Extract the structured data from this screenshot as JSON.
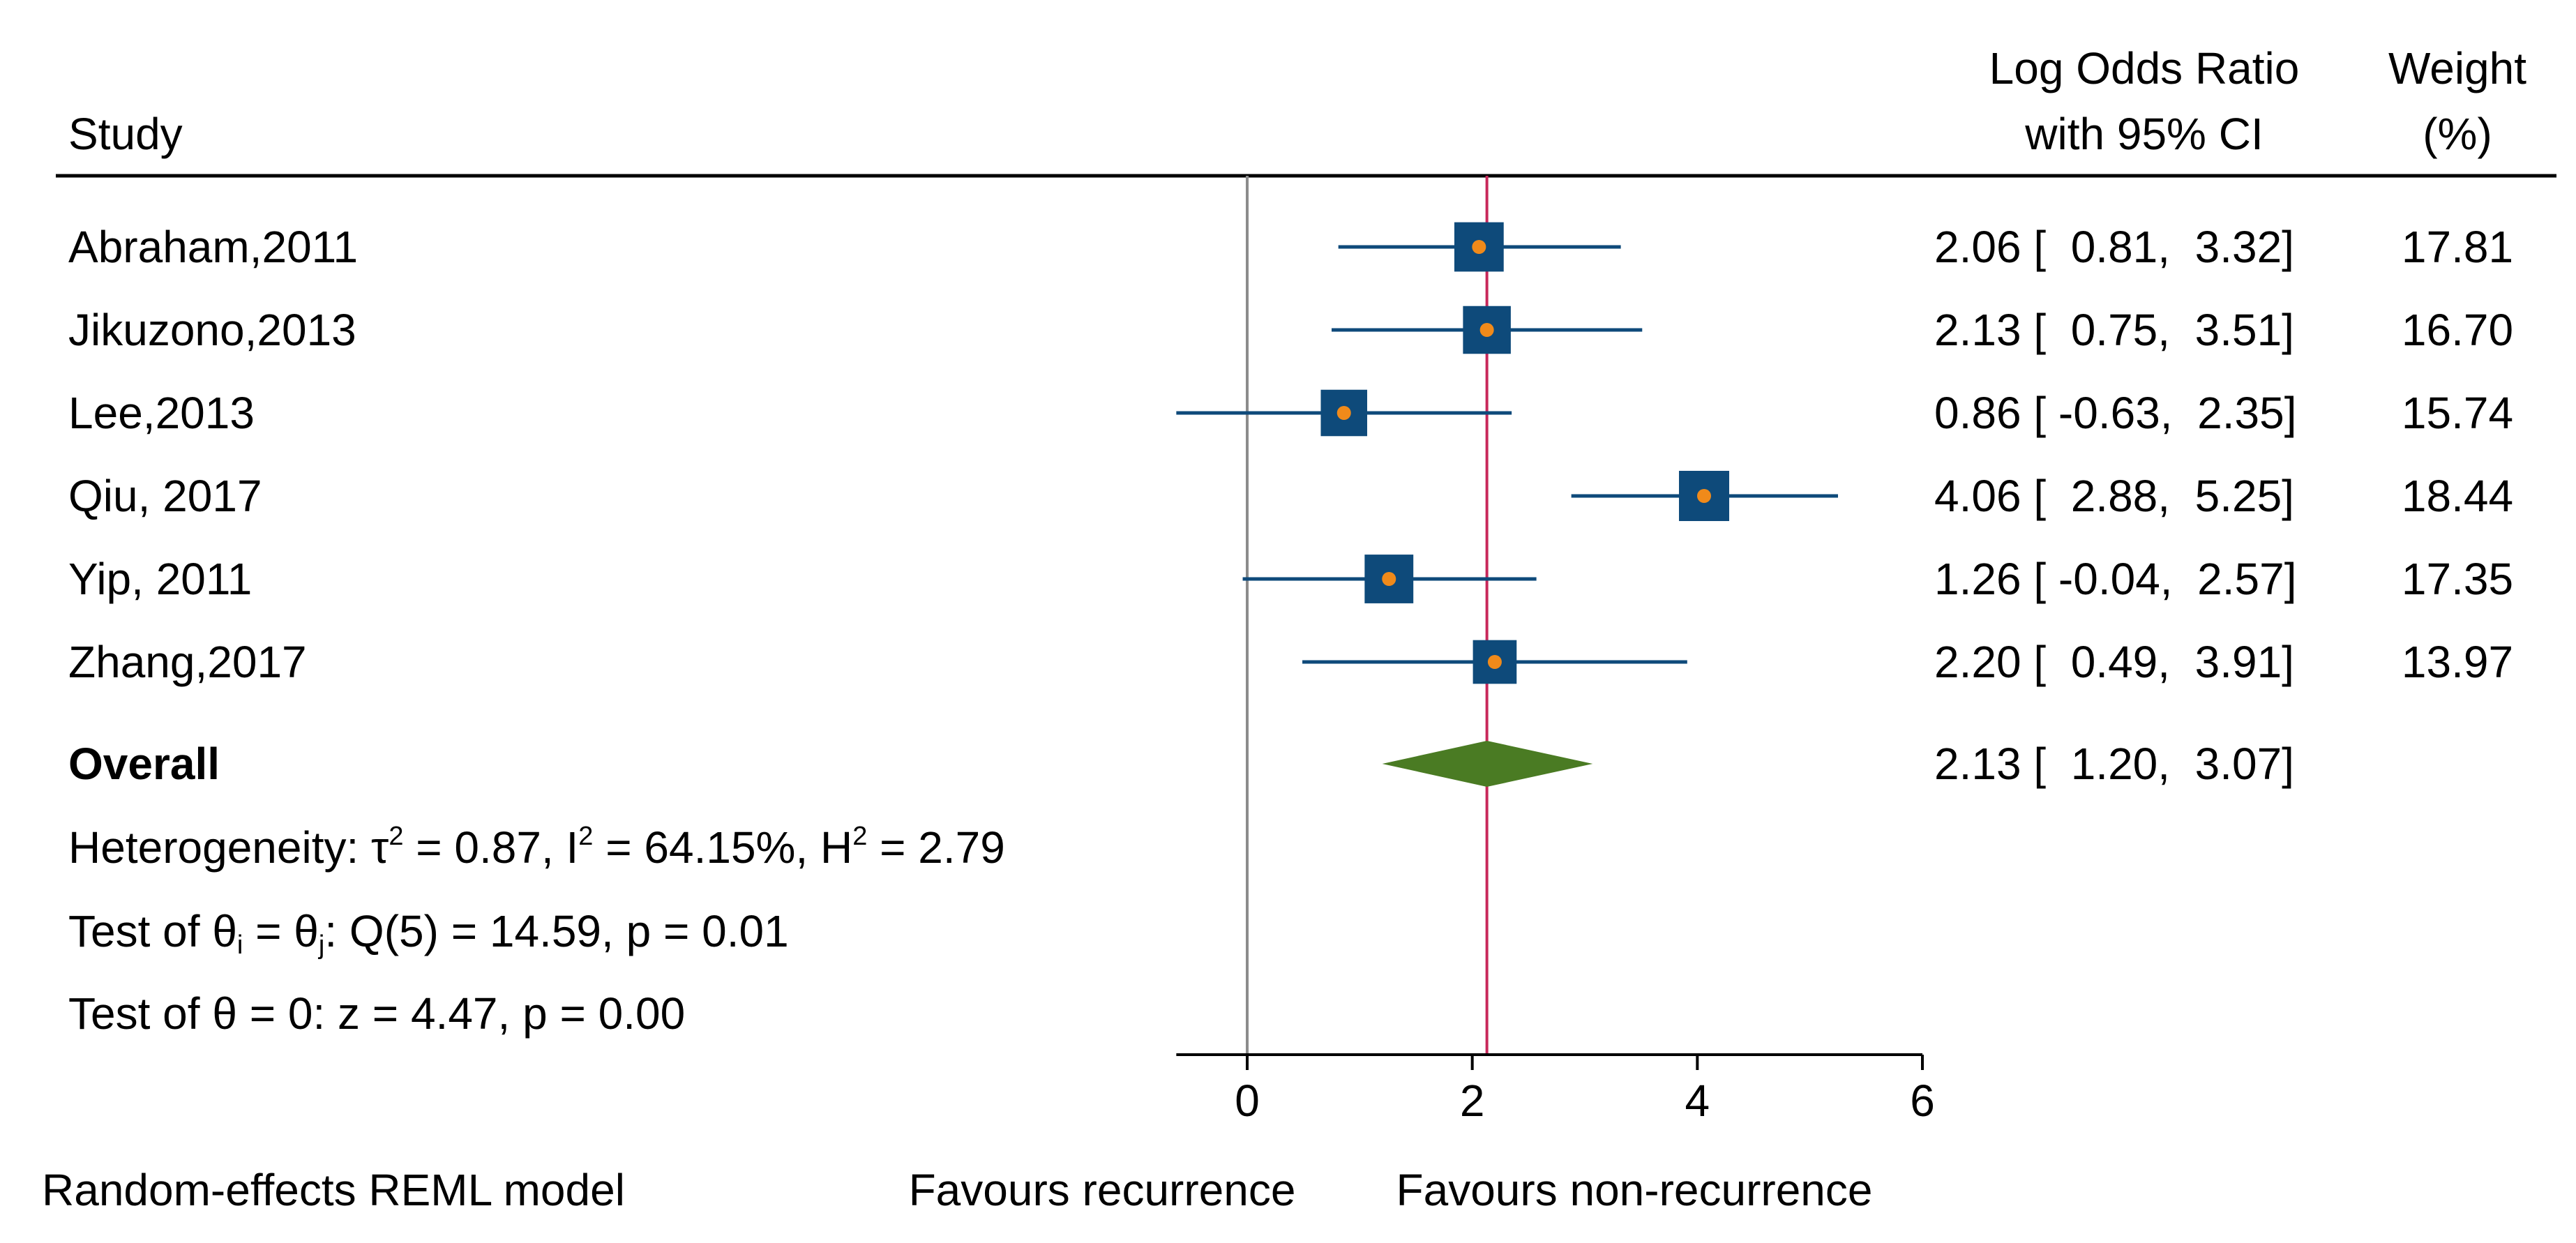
{
  "chart_data": {
    "type": "forest",
    "header": {
      "study_label": "Study",
      "effect_label_line1": "Log Odds Ratio",
      "effect_label_line2": "with 95% CI",
      "weight_label_line1": "Weight",
      "weight_label_line2": "(%)"
    },
    "studies": [
      {
        "name": "Abraham,2011",
        "estimate": 2.06,
        "lower": 0.81,
        "upper": 3.32,
        "weight": 17.81,
        "ci_text": "2.06 [  0.81,  3.32]",
        "weight_text": "17.81"
      },
      {
        "name": "Jikuzono,2013",
        "estimate": 2.13,
        "lower": 0.75,
        "upper": 3.51,
        "weight": 16.7,
        "ci_text": "2.13 [  0.75,  3.51]",
        "weight_text": "16.70"
      },
      {
        "name": "Lee,2013",
        "estimate": 0.86,
        "lower": -0.63,
        "upper": 2.35,
        "weight": 15.74,
        "ci_text": "0.86 [ -0.63,  2.35]",
        "weight_text": "15.74"
      },
      {
        "name": "Qiu, 2017",
        "estimate": 4.06,
        "lower": 2.88,
        "upper": 5.25,
        "weight": 18.44,
        "ci_text": "4.06 [  2.88,  5.25]",
        "weight_text": "18.44"
      },
      {
        "name": "Yip, 2011",
        "estimate": 1.26,
        "lower": -0.04,
        "upper": 2.57,
        "weight": 17.35,
        "ci_text": "1.26 [ -0.04,  2.57]",
        "weight_text": "17.35"
      },
      {
        "name": "Zhang,2017",
        "estimate": 2.2,
        "lower": 0.49,
        "upper": 3.91,
        "weight": 13.97,
        "ci_text": "2.20 [  0.49,  3.91]",
        "weight_text": "13.97"
      }
    ],
    "overall": {
      "label": "Overall",
      "estimate": 2.13,
      "lower": 1.2,
      "upper": 3.07,
      "ci_text": "2.13 [  1.20,  3.07]"
    },
    "heterogeneity": {
      "prefix": "Heterogeneity: τ",
      "tau2_part": " = 0.87, I",
      "i2_part": " = 64.15%, H",
      "h2_part": " = 2.79",
      "sup": "2"
    },
    "test_equal": {
      "prefix": "Test of θ",
      "sub_i": "i",
      "eq": " = θ",
      "sub_j": "j",
      "rest": ": Q(5) = 14.59, p = 0.01"
    },
    "test_zero": "Test of θ = 0: z = 4.47, p = 0.00",
    "x_axis": {
      "ticks": [
        0,
        2,
        4,
        6
      ],
      "tick_labels": [
        "0",
        "2",
        "4",
        "6"
      ],
      "range": [
        -0.63,
        6
      ]
    },
    "null_line": 0,
    "favours_left": "Favours recurrence",
    "favours_right": "Favours non-recurrence",
    "model_note": "Random-effects REML model",
    "colors": {
      "box": "#0e4a7a",
      "ci_line": "#0e4a7a",
      "point": "#f08a1a",
      "diamond": "#4a7b23",
      "overall_line": "#c8285a",
      "null_line": "#8c8c8c",
      "axis": "#000000"
    }
  }
}
